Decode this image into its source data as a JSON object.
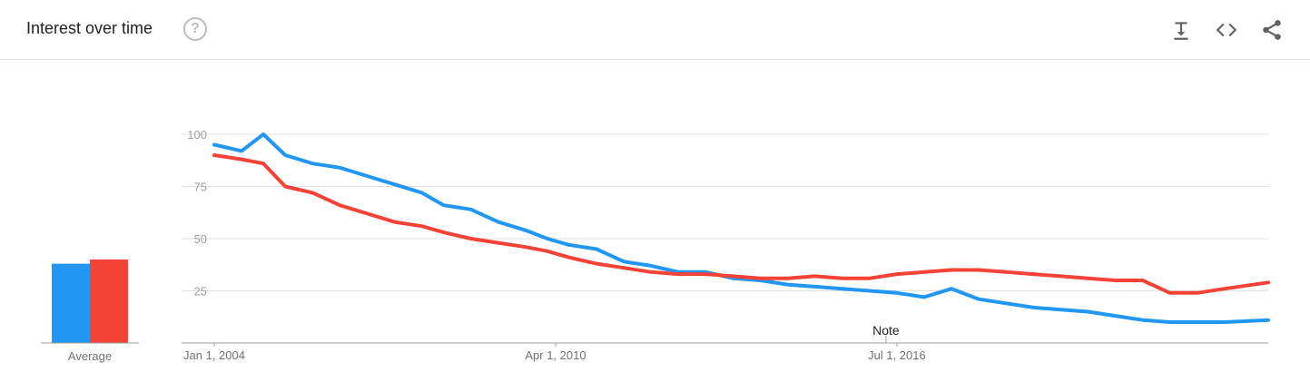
{
  "header": {
    "title": "Interest over time",
    "help_icon": "help-circle-icon",
    "tools": [
      "download-icon",
      "embed-code-icon",
      "share-icon"
    ]
  },
  "colors": {
    "series1": "#2196f3",
    "series2": "#f44336",
    "grid": "#e0e0e0",
    "axis": "#9e9e9e"
  },
  "average": {
    "label": "Average",
    "values": [
      38,
      40
    ]
  },
  "note": {
    "text": "Note",
    "x": 2016.3
  },
  "chart_data": {
    "type": "line",
    "xlim": [
      2004.0,
      2023.3
    ],
    "ylim": [
      0,
      100
    ],
    "yticks": [
      25,
      50,
      75,
      100
    ],
    "xticks": [
      {
        "x": 2004.0,
        "label": "Jan 1, 2004"
      },
      {
        "x": 2010.25,
        "label": "Apr 1, 2010"
      },
      {
        "x": 2016.5,
        "label": "Jul 1, 2016"
      }
    ],
    "series": [
      {
        "points": [
          [
            2004.0,
            95
          ],
          [
            2004.5,
            92
          ],
          [
            2004.9,
            100
          ],
          [
            2005.3,
            90
          ],
          [
            2005.8,
            86
          ],
          [
            2006.3,
            84
          ],
          [
            2006.8,
            80
          ],
          [
            2007.3,
            76
          ],
          [
            2007.8,
            72
          ],
          [
            2008.2,
            66
          ],
          [
            2008.7,
            64
          ],
          [
            2009.2,
            58
          ],
          [
            2009.7,
            54
          ],
          [
            2010.1,
            50
          ],
          [
            2010.5,
            47
          ],
          [
            2011.0,
            45
          ],
          [
            2011.5,
            39
          ],
          [
            2012.0,
            37
          ],
          [
            2012.5,
            34
          ],
          [
            2013.0,
            34
          ],
          [
            2013.5,
            31
          ],
          [
            2014.0,
            30
          ],
          [
            2014.5,
            28
          ],
          [
            2015.0,
            27
          ],
          [
            2015.5,
            26
          ],
          [
            2016.0,
            25
          ],
          [
            2016.5,
            24
          ],
          [
            2017.0,
            22
          ],
          [
            2017.5,
            26
          ],
          [
            2018.0,
            21
          ],
          [
            2018.5,
            19
          ],
          [
            2019.0,
            17
          ],
          [
            2019.5,
            16
          ],
          [
            2020.0,
            15
          ],
          [
            2020.5,
            13
          ],
          [
            2021.0,
            11
          ],
          [
            2021.5,
            10
          ],
          [
            2022.0,
            10
          ],
          [
            2022.5,
            10
          ],
          [
            2023.3,
            11
          ]
        ]
      },
      {
        "points": [
          [
            2004.0,
            90
          ],
          [
            2004.5,
            88
          ],
          [
            2004.9,
            86
          ],
          [
            2005.3,
            75
          ],
          [
            2005.8,
            72
          ],
          [
            2006.3,
            66
          ],
          [
            2006.8,
            62
          ],
          [
            2007.3,
            58
          ],
          [
            2007.8,
            56
          ],
          [
            2008.2,
            53
          ],
          [
            2008.7,
            50
          ],
          [
            2009.2,
            48
          ],
          [
            2009.7,
            46
          ],
          [
            2010.1,
            44
          ],
          [
            2010.5,
            41
          ],
          [
            2011.0,
            38
          ],
          [
            2011.5,
            36
          ],
          [
            2012.0,
            34
          ],
          [
            2012.5,
            33
          ],
          [
            2013.0,
            33
          ],
          [
            2013.5,
            32
          ],
          [
            2014.0,
            31
          ],
          [
            2014.5,
            31
          ],
          [
            2015.0,
            32
          ],
          [
            2015.5,
            31
          ],
          [
            2016.0,
            31
          ],
          [
            2016.5,
            33
          ],
          [
            2017.0,
            34
          ],
          [
            2017.5,
            35
          ],
          [
            2018.0,
            35
          ],
          [
            2018.5,
            34
          ],
          [
            2019.0,
            33
          ],
          [
            2019.5,
            32
          ],
          [
            2020.0,
            31
          ],
          [
            2020.5,
            30
          ],
          [
            2021.0,
            30
          ],
          [
            2021.5,
            24
          ],
          [
            2022.0,
            24
          ],
          [
            2022.5,
            26
          ],
          [
            2023.3,
            29
          ]
        ]
      }
    ]
  }
}
